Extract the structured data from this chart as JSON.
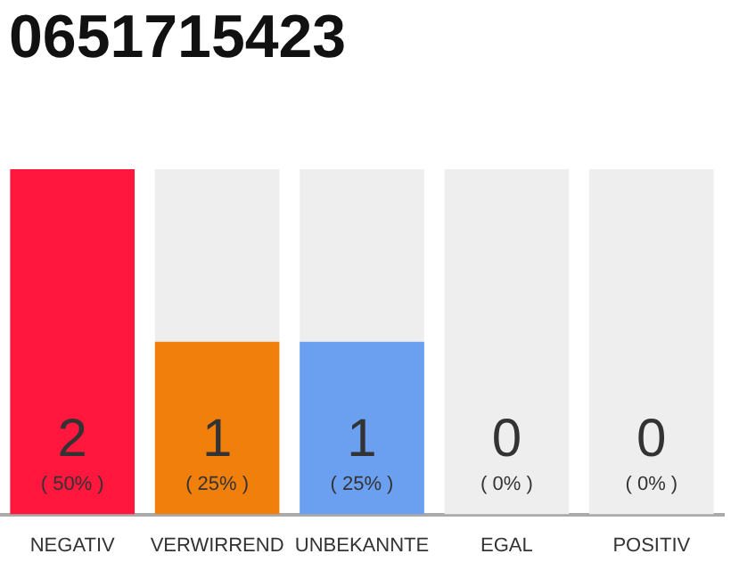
{
  "chart_data": {
    "type": "bar",
    "title": "0651715423",
    "categories": [
      "NEGATIV",
      "VERWIRREND",
      "UNBEKANNTE",
      "EGAL",
      "POSITIV"
    ],
    "stacked": true,
    "series": [
      {
        "colors": [
          "#ff173d",
          "#f07f0b",
          "#6b9ff0",
          "#eeeeee",
          "#eeeeee"
        ],
        "values": [
          2,
          1,
          1,
          0,
          0
        ],
        "value_labels": [
          "2",
          "1",
          "1",
          null,
          null
        ]
      },
      {
        "color": "#eeeeee",
        "values": [
          0,
          1,
          1,
          2,
          2
        ]
      }
    ],
    "ylim": [
      0,
      2
    ],
    "tick_labels": "x",
    "grid": false,
    "legend": false,
    "annotations": [
      "( 50% )",
      "( 25% )",
      "( 25% )",
      "( 0% )",
      "( 0% )",
      "0",
      "0"
    ]
  }
}
